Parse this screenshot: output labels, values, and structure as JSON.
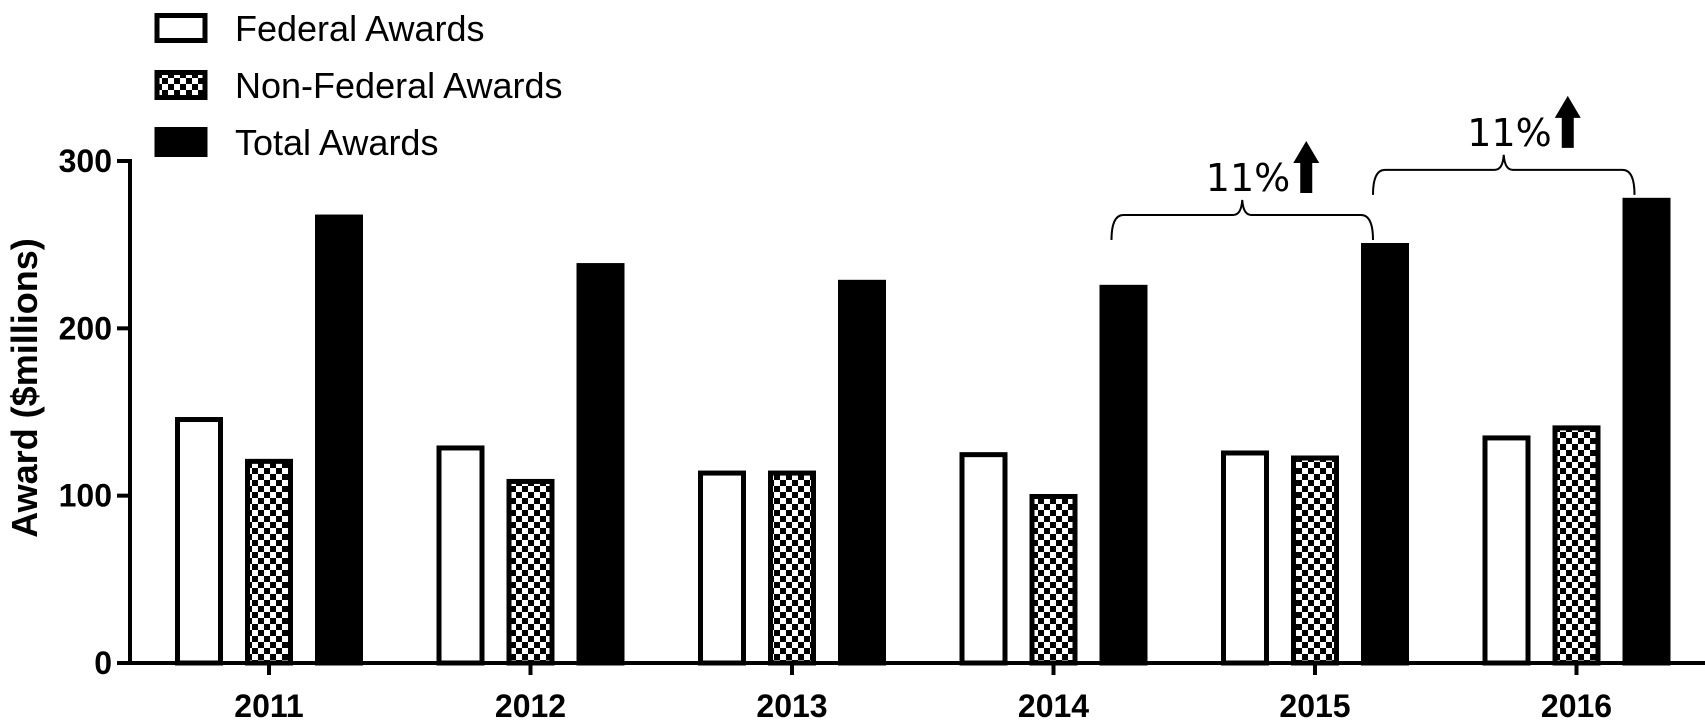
{
  "chart_data": {
    "type": "bar",
    "categories": [
      "2011",
      "2012",
      "2013",
      "2014",
      "2015",
      "2016"
    ],
    "series": [
      {
        "name": "Federal Awards",
        "values": [
          147,
          130,
          115,
          126,
          127,
          136
        ],
        "pattern": "open"
      },
      {
        "name": "Non-Federal Awards",
        "values": [
          122,
          110,
          115,
          101,
          124,
          142
        ],
        "pattern": "checker"
      },
      {
        "name": "Total Awards",
        "values": [
          268,
          239,
          229,
          226,
          251,
          278
        ],
        "pattern": "solid"
      }
    ],
    "ylabel": "Award ($millions)",
    "xlabel": "",
    "ylim": [
      0,
      300
    ],
    "yticks": [
      0,
      100,
      200,
      300
    ],
    "legend_position": "top-left",
    "grid": false,
    "annotations": [
      {
        "text": "11%",
        "from_category": "2014",
        "to_category": "2015",
        "direction": "up-arrow"
      },
      {
        "text": "11%",
        "from_category": "2015",
        "to_category": "2016",
        "direction": "up-arrow"
      }
    ],
    "colors": {
      "fill": "#000000",
      "background": "#ffffff"
    }
  }
}
